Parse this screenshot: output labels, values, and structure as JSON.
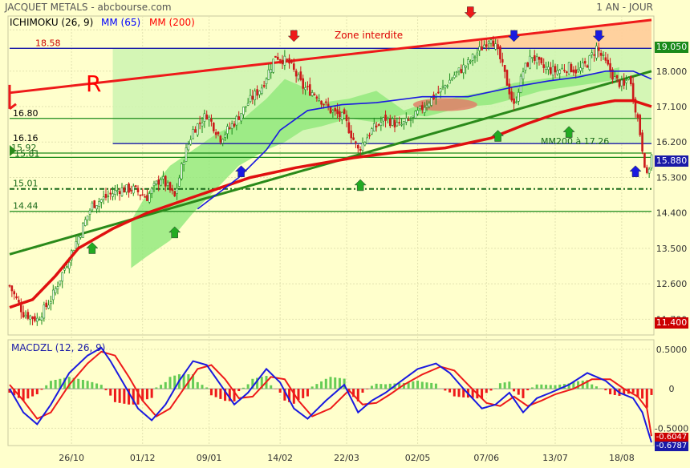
{
  "header": {
    "title": "JACQUET METALS - abcbourse.com",
    "period": "1 AN - JOUR",
    "legend": [
      {
        "label": "ICHIMOKU (26, 9)",
        "color": "#000000"
      },
      {
        "label": "MM (65)",
        "color": "#0000ff"
      },
      {
        "label": "MM (200)",
        "color": "#ff0000"
      }
    ]
  },
  "annotations": {
    "zone_label": "Zone interdite",
    "r_label": "R",
    "mm200_note": "MM200 à 17.26"
  },
  "levels": [
    {
      "label": "18.58",
      "value": 18.58,
      "color": "#1a1aa8",
      "label_color": "#cc0000"
    },
    {
      "label": "16.80",
      "value": 16.8,
      "color": "#1a8a1a",
      "label_color": "#000000"
    },
    {
      "label": "16.16",
      "value": 16.16,
      "color": "#1a1aa8",
      "label_color": "#000000"
    },
    {
      "label": "15.92",
      "value": 15.92,
      "color": "#1a8a1a",
      "label_color": "#1a6a1a"
    },
    {
      "label": "15.81",
      "value": 15.81,
      "color": "#1a8a1a",
      "label_color": "#1a6a1a"
    },
    {
      "label": "15.01",
      "value": 15.01,
      "color": "#1a6a1a",
      "label_color": "#1a6a1a"
    },
    {
      "label": "14.44",
      "value": 14.44,
      "color": "#1a8a1a",
      "label_color": "#1a6a1a"
    }
  ],
  "badges": {
    "top": {
      "label": "19.050",
      "color": "#1a8a1a"
    },
    "last": {
      "label": "15.880",
      "color": "#1a1aa8"
    },
    "bottom": {
      "label": "11.400",
      "color": "#cc0000"
    },
    "macd1": {
      "label": "-0.6047",
      "color": "#cc0000"
    },
    "macd2": {
      "label": "-0.6787",
      "color": "#1a1aa8"
    }
  },
  "macd": {
    "title": "MACDZL (12, 26, 9)"
  },
  "chart_data": {
    "type": "candlestick",
    "y_axis": {
      "ticks": [
        "19.050",
        "18.000",
        "17.100",
        "16.200",
        "15.300",
        "14.400",
        "13.500",
        "12.600",
        "11.700"
      ],
      "values": [
        19.05,
        18.0,
        17.1,
        16.2,
        15.3,
        14.4,
        13.5,
        12.6,
        11.7
      ],
      "range": [
        11.3,
        19.4
      ]
    },
    "x_axis": {
      "ticks": [
        "26/10",
        "01/12",
        "09/01",
        "14/02",
        "22/03",
        "02/05",
        "07/06",
        "13/07",
        "18/08"
      ]
    },
    "macd_axis": {
      "ticks": [
        "0.5000",
        "0",
        "-0.5000"
      ],
      "values": [
        0.5,
        0,
        -0.5
      ],
      "range": [
        -0.72,
        0.62
      ]
    },
    "close_path": [
      [
        0,
        12.55
      ],
      [
        6,
        11.85
      ],
      [
        12,
        11.7
      ],
      [
        18,
        12.2
      ],
      [
        24,
        13.0
      ],
      [
        30,
        13.8
      ],
      [
        36,
        14.6
      ],
      [
        42,
        14.8
      ],
      [
        48,
        15.0
      ],
      [
        54,
        15.0
      ],
      [
        60,
        14.8
      ],
      [
        66,
        15.3
      ],
      [
        72,
        14.8
      ],
      [
        76,
        15.8
      ],
      [
        80,
        16.5
      ],
      [
        86,
        16.9
      ],
      [
        92,
        16.3
      ],
      [
        98,
        16.7
      ],
      [
        104,
        17.2
      ],
      [
        110,
        17.6
      ],
      [
        116,
        18.4
      ],
      [
        122,
        18.2
      ],
      [
        128,
        17.6
      ],
      [
        134,
        17.4
      ],
      [
        140,
        17.0
      ],
      [
        146,
        16.8
      ],
      [
        152,
        16.0
      ],
      [
        158,
        16.5
      ],
      [
        164,
        16.8
      ],
      [
        170,
        16.6
      ],
      [
        176,
        16.8
      ],
      [
        182,
        17.2
      ],
      [
        188,
        17.5
      ],
      [
        194,
        17.9
      ],
      [
        200,
        18.2
      ],
      [
        206,
        18.6
      ],
      [
        210,
        18.9
      ],
      [
        214,
        18.3
      ],
      [
        218,
        17.5
      ],
      [
        220,
        17.1
      ],
      [
        224,
        18.0
      ],
      [
        228,
        18.4
      ],
      [
        232,
        18.1
      ],
      [
        238,
        18.0
      ],
      [
        244,
        18.1
      ],
      [
        248,
        18.0
      ],
      [
        252,
        18.2
      ],
      [
        256,
        18.6
      ],
      [
        260,
        18.2
      ],
      [
        264,
        17.8
      ],
      [
        268,
        17.6
      ],
      [
        270,
        17.9
      ],
      [
        274,
        16.8
      ],
      [
        278,
        15.3
      ],
      [
        280,
        15.85
      ]
    ],
    "mm65_path": [
      [
        82,
        14.5
      ],
      [
        100,
        15.3
      ],
      [
        112,
        16.0
      ],
      [
        118,
        16.5
      ],
      [
        130,
        17.0
      ],
      [
        145,
        17.15
      ],
      [
        160,
        17.2
      ],
      [
        180,
        17.35
      ],
      [
        200,
        17.35
      ],
      [
        220,
        17.6
      ],
      [
        235,
        17.75
      ],
      [
        248,
        17.85
      ],
      [
        260,
        18.0
      ],
      [
        272,
        18.0
      ],
      [
        280,
        17.8
      ]
    ],
    "mm200_path": [
      [
        0,
        12.0
      ],
      [
        10,
        12.2
      ],
      [
        20,
        12.8
      ],
      [
        30,
        13.5
      ],
      [
        45,
        14.0
      ],
      [
        60,
        14.4
      ],
      [
        75,
        14.7
      ],
      [
        90,
        15.0
      ],
      [
        105,
        15.3
      ],
      [
        125,
        15.55
      ],
      [
        150,
        15.8
      ],
      [
        170,
        15.95
      ],
      [
        190,
        16.05
      ],
      [
        210,
        16.3
      ],
      [
        225,
        16.65
      ],
      [
        240,
        16.95
      ],
      [
        252,
        17.12
      ],
      [
        264,
        17.25
      ],
      [
        272,
        17.25
      ],
      [
        280,
        17.1
      ]
    ],
    "ichimoku_cloud_upper": [
      [
        53,
        14.2
      ],
      [
        60,
        14.9
      ],
      [
        70,
        15.6
      ],
      [
        80,
        16.0
      ],
      [
        90,
        16.4
      ],
      [
        100,
        16.7
      ],
      [
        112,
        17.3
      ],
      [
        120,
        17.8
      ],
      [
        128,
        17.6
      ],
      [
        136,
        17.2
      ],
      [
        148,
        17.3
      ],
      [
        160,
        17.5
      ],
      [
        172,
        17.0
      ],
      [
        182,
        17.2
      ],
      [
        192,
        17.3
      ],
      [
        200,
        17.4
      ],
      [
        210,
        17.5
      ],
      [
        220,
        17.7
      ],
      [
        232,
        17.8
      ],
      [
        244,
        17.9
      ],
      [
        256,
        17.95
      ],
      [
        266,
        18.1
      ]
    ],
    "ichimoku_cloud_lower": [
      [
        53,
        13.0
      ],
      [
        60,
        13.3
      ],
      [
        70,
        13.7
      ],
      [
        80,
        14.4
      ],
      [
        90,
        15.0
      ],
      [
        100,
        15.6
      ],
      [
        112,
        16.0
      ],
      [
        120,
        16.2
      ],
      [
        128,
        16.5
      ],
      [
        136,
        16.6
      ],
      [
        148,
        16.8
      ],
      [
        160,
        16.7
      ],
      [
        172,
        16.9
      ],
      [
        182,
        16.85
      ],
      [
        192,
        17.0
      ],
      [
        200,
        17.1
      ],
      [
        210,
        17.15
      ],
      [
        220,
        17.3
      ],
      [
        232,
        17.5
      ],
      [
        244,
        17.6
      ],
      [
        256,
        17.7
      ],
      [
        266,
        17.8
      ]
    ],
    "macd_path": [
      [
        0,
        0.0
      ],
      [
        6,
        -0.3
      ],
      [
        12,
        -0.45
      ],
      [
        18,
        -0.2
      ],
      [
        26,
        0.2
      ],
      [
        34,
        0.42
      ],
      [
        40,
        0.52
      ],
      [
        44,
        0.35
      ],
      [
        50,
        0.05
      ],
      [
        56,
        -0.25
      ],
      [
        62,
        -0.4
      ],
      [
        68,
        -0.2
      ],
      [
        74,
        0.1
      ],
      [
        80,
        0.35
      ],
      [
        86,
        0.3
      ],
      [
        92,
        0.05
      ],
      [
        98,
        -0.2
      ],
      [
        104,
        -0.05
      ],
      [
        112,
        0.25
      ],
      [
        118,
        0.08
      ],
      [
        124,
        -0.25
      ],
      [
        130,
        -0.38
      ],
      [
        138,
        -0.15
      ],
      [
        146,
        0.05
      ],
      [
        152,
        -0.3
      ],
      [
        158,
        -0.15
      ],
      [
        164,
        -0.05
      ],
      [
        170,
        0.08
      ],
      [
        178,
        0.25
      ],
      [
        186,
        0.32
      ],
      [
        192,
        0.2
      ],
      [
        198,
        0.0
      ],
      [
        206,
        -0.25
      ],
      [
        212,
        -0.2
      ],
      [
        218,
        -0.05
      ],
      [
        224,
        -0.3
      ],
      [
        230,
        -0.12
      ],
      [
        236,
        -0.05
      ],
      [
        244,
        0.05
      ],
      [
        252,
        0.2
      ],
      [
        260,
        0.1
      ],
      [
        266,
        -0.05
      ],
      [
        272,
        -0.12
      ],
      [
        276,
        -0.3
      ],
      [
        280,
        -0.68
      ]
    ],
    "macd_signal_path": [
      [
        0,
        0.05
      ],
      [
        6,
        -0.15
      ],
      [
        12,
        -0.38
      ],
      [
        18,
        -0.3
      ],
      [
        26,
        0.05
      ],
      [
        34,
        0.32
      ],
      [
        40,
        0.47
      ],
      [
        46,
        0.42
      ],
      [
        52,
        0.15
      ],
      [
        58,
        -0.15
      ],
      [
        64,
        -0.35
      ],
      [
        70,
        -0.25
      ],
      [
        76,
        0.0
      ],
      [
        82,
        0.25
      ],
      [
        88,
        0.3
      ],
      [
        94,
        0.12
      ],
      [
        100,
        -0.12
      ],
      [
        106,
        -0.1
      ],
      [
        114,
        0.15
      ],
      [
        120,
        0.12
      ],
      [
        126,
        -0.15
      ],
      [
        132,
        -0.35
      ],
      [
        140,
        -0.25
      ],
      [
        148,
        -0.02
      ],
      [
        154,
        -0.2
      ],
      [
        160,
        -0.18
      ],
      [
        166,
        -0.07
      ],
      [
        172,
        0.05
      ],
      [
        180,
        0.18
      ],
      [
        188,
        0.28
      ],
      [
        194,
        0.23
      ],
      [
        200,
        0.05
      ],
      [
        208,
        -0.18
      ],
      [
        214,
        -0.22
      ],
      [
        220,
        -0.1
      ],
      [
        226,
        -0.22
      ],
      [
        232,
        -0.15
      ],
      [
        238,
        -0.07
      ],
      [
        246,
        0.0
      ],
      [
        254,
        0.12
      ],
      [
        262,
        0.12
      ],
      [
        268,
        0.0
      ],
      [
        274,
        -0.1
      ],
      [
        278,
        -0.25
      ],
      [
        280,
        -0.6
      ]
    ]
  }
}
